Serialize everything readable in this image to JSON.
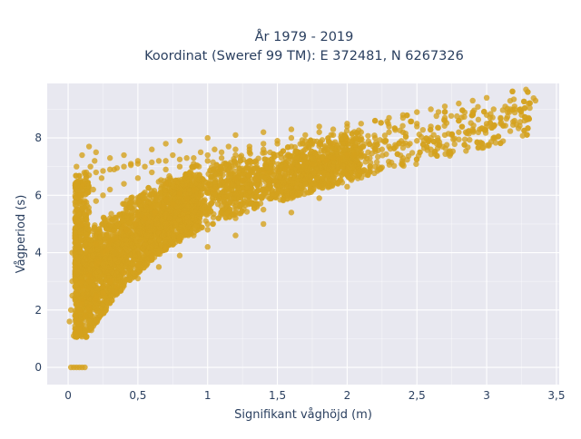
{
  "chart_data": {
    "type": "scatter",
    "title_lines": [
      "År 1979 - 2019",
      "Koordinat (Sweref 99 TM): E 372481, N 6267326"
    ],
    "xlabel": "Signifikant våghöjd (m)",
    "ylabel": "Vågperiod (s)",
    "xlim": [
      -0.15,
      3.52
    ],
    "ylim": [
      -0.6,
      9.9
    ],
    "x_ticks": [
      0,
      0.5,
      1,
      1.5,
      2,
      2.5,
      3,
      3.5
    ],
    "x_tick_labels": [
      "0",
      "0,5",
      "1",
      "1,5",
      "2",
      "2,5",
      "3",
      "3,5"
    ],
    "y_ticks": [
      0,
      2,
      4,
      6,
      8
    ],
    "y_tick_labels": [
      "0",
      "2",
      "4",
      "6",
      "8"
    ],
    "grid": true,
    "legend": "none",
    "marker_color": "#d4a11d",
    "background": "#e8e8f0",
    "series": [
      {
        "x": [
          0.02,
          0.04,
          0.06,
          0.08,
          0.1,
          0.12,
          0.05,
          0.08,
          0.1,
          0.15,
          0.2,
          0.25,
          0.3,
          0.35,
          0.4,
          0.5,
          0.6,
          0.7,
          0.8,
          0.9,
          1.0,
          1.1,
          1.2,
          1.3,
          1.4,
          1.5,
          1.6,
          1.7,
          1.8,
          1.9,
          2.0,
          2.1,
          2.2,
          2.3,
          2.4,
          2.5,
          2.6,
          2.7,
          2.8,
          2.9,
          3.0,
          3.1,
          3.2,
          3.3,
          0.03,
          0.05,
          0.07,
          0.1,
          0.15,
          0.2,
          0.25,
          0.3,
          0.4,
          0.5,
          0.6,
          0.7,
          0.8,
          0.9,
          1.0,
          1.1,
          1.2,
          1.3,
          1.4,
          1.6,
          1.8,
          2.0,
          2.2,
          2.4,
          2.6,
          2.8,
          3.0,
          3.2,
          0.04,
          0.06,
          0.08,
          0.1,
          0.12,
          0.15,
          0.2,
          0.25,
          0.3,
          0.4,
          0.5,
          0.6,
          0.7,
          0.8,
          0.9,
          1.0,
          1.2,
          1.4,
          1.6,
          1.8,
          2.0,
          2.2,
          2.4,
          2.6,
          0.03,
          0.05,
          0.08,
          0.1,
          0.12,
          0.15,
          0.2,
          0.25,
          0.3,
          0.35,
          0.4,
          0.45,
          0.5,
          0.6,
          0.7,
          0.8,
          0.9,
          1.0,
          1.1,
          1.2,
          1.3,
          1.4,
          1.5,
          1.6,
          1.7,
          1.8,
          1.9,
          2.0,
          2.1,
          2.2,
          2.3,
          2.4,
          2.5,
          2.6,
          2.7,
          2.8,
          2.9,
          3.0,
          0.06,
          0.1,
          0.15,
          0.2,
          0.3,
          0.4,
          0.5,
          0.6,
          0.7,
          0.8,
          1.0,
          1.2,
          1.4,
          1.6,
          1.8,
          2.0,
          2.2,
          2.4,
          0.1,
          0.15,
          0.25,
          0.35,
          0.5,
          0.65,
          0.8,
          1.0,
          1.2,
          1.4,
          1.6,
          1.8,
          2.0,
          0.08,
          0.1,
          0.15,
          0.2,
          0.25,
          0.3,
          0.4,
          0.5,
          0.6,
          0.7,
          0.8,
          1.0,
          1.2,
          2.7,
          2.8,
          2.9,
          3.0,
          3.05,
          3.1,
          3.15,
          3.2,
          3.25,
          3.3,
          3.35,
          0.05,
          0.1,
          0.2,
          0.3,
          0.4,
          0.55,
          0.7,
          0.9,
          1.1,
          1.3,
          1.5,
          1.7,
          1.9,
          2.1,
          2.3,
          2.5,
          2.7,
          2.9,
          0.15,
          0.22,
          0.28,
          0.34,
          0.42,
          0.48,
          0.55,
          0.62,
          0.68,
          0.75,
          0.85,
          0.95,
          1.05,
          1.15,
          1.25,
          1.35,
          1.45,
          1.55,
          1.65,
          1.75,
          1.85,
          1.95,
          2.05,
          2.15,
          2.25,
          2.35,
          2.45,
          2.55,
          2.65,
          2.75,
          2.85,
          2.95,
          3.05,
          0.01,
          0.02,
          0.03,
          0.05,
          0.07,
          0.09,
          0.11,
          0.13,
          0.16,
          0.19,
          0.12,
          0.18,
          0.24,
          0.33,
          0.45,
          0.55,
          0.65,
          0.75,
          0.85,
          0.95,
          1.05,
          1.15,
          1.3,
          1.5,
          1.7,
          1.9,
          2.1,
          2.3,
          2.5,
          2.7,
          2.9
        ],
        "y": [
          0.0,
          0.0,
          0.0,
          0.0,
          0.0,
          0.0,
          1.2,
          1.6,
          2.3,
          3.0,
          3.6,
          4.0,
          4.4,
          4.7,
          4.95,
          5.3,
          5.6,
          5.85,
          6.05,
          6.2,
          6.35,
          6.5,
          6.6,
          6.7,
          6.8,
          6.9,
          7.0,
          7.1,
          7.2,
          7.3,
          7.4,
          7.5,
          7.6,
          7.7,
          7.8,
          7.9,
          8.0,
          8.1,
          8.2,
          8.3,
          8.4,
          8.5,
          8.6,
          8.7,
          2.5,
          3.5,
          4.2,
          5.0,
          5.4,
          5.8,
          6.0,
          6.2,
          6.4,
          6.6,
          6.8,
          6.9,
          7.0,
          7.1,
          7.2,
          7.3,
          7.4,
          7.5,
          7.6,
          7.7,
          7.8,
          7.9,
          8.0,
          8.2,
          8.4,
          8.6,
          8.8,
          9.0,
          1.1,
          1.2,
          1.3,
          1.5,
          1.8,
          2.1,
          2.5,
          2.8,
          3.0,
          3.3,
          3.5,
          3.8,
          4.1,
          4.4,
          4.6,
          4.8,
          5.2,
          5.5,
          5.9,
          6.3,
          6.7,
          7.0,
          7.3,
          7.6,
          4.0,
          5.2,
          6.0,
          6.3,
          6.5,
          6.7,
          6.8,
          6.85,
          6.9,
          6.95,
          7.0,
          7.05,
          7.1,
          7.15,
          7.2,
          7.25,
          7.3,
          7.4,
          7.5,
          7.6,
          7.7,
          7.8,
          7.9,
          8.0,
          8.1,
          8.2,
          8.3,
          8.4,
          8.5,
          8.6,
          8.7,
          8.8,
          8.9,
          9.0,
          9.1,
          9.2,
          9.3,
          9.4,
          7.0,
          7.4,
          7.7,
          7.5,
          7.3,
          7.4,
          7.2,
          7.6,
          7.8,
          7.9,
          8.0,
          8.1,
          8.2,
          8.3,
          8.4,
          8.5,
          8.6,
          8.7,
          3.0,
          2.8,
          2.6,
          2.8,
          3.1,
          3.5,
          3.9,
          4.2,
          4.6,
          5.0,
          5.4,
          5.9,
          6.3,
          2.0,
          2.2,
          2.0,
          2.4,
          2.6,
          3.0,
          3.3,
          3.6,
          3.9,
          4.2,
          4.5,
          5.0,
          5.4,
          8.9,
          8.6,
          8.8,
          8.5,
          9.0,
          8.7,
          8.9,
          9.1,
          8.8,
          9.2,
          9.3,
          1.8,
          2.8,
          4.3,
          5.2,
          5.7,
          6.1,
          6.4,
          6.7,
          7.0,
          7.2,
          7.4,
          7.6,
          7.8,
          8.0,
          8.2,
          8.4,
          8.6,
          8.8,
          3.2,
          3.7,
          4.1,
          4.5,
          4.8,
          5.0,
          5.2,
          5.4,
          5.6,
          5.7,
          5.9,
          6.0,
          6.2,
          6.4,
          6.5,
          6.6,
          6.8,
          6.9,
          7.0,
          7.1,
          7.2,
          7.3,
          7.4,
          7.5,
          7.6,
          7.7,
          7.8,
          7.9,
          8.0,
          8.1,
          8.2,
          8.3,
          8.4,
          1.6,
          2.0,
          3.0,
          4.5,
          5.5,
          6.0,
          6.4,
          6.8,
          7.0,
          7.2,
          5.8,
          6.2,
          6.6,
          6.9,
          7.1,
          7.0,
          7.2,
          7.4,
          7.3,
          7.5,
          7.6,
          7.7,
          7.6,
          7.8,
          7.9,
          8.1,
          8.2,
          8.4,
          8.5,
          8.7,
          8.9
        ]
      }
    ]
  }
}
